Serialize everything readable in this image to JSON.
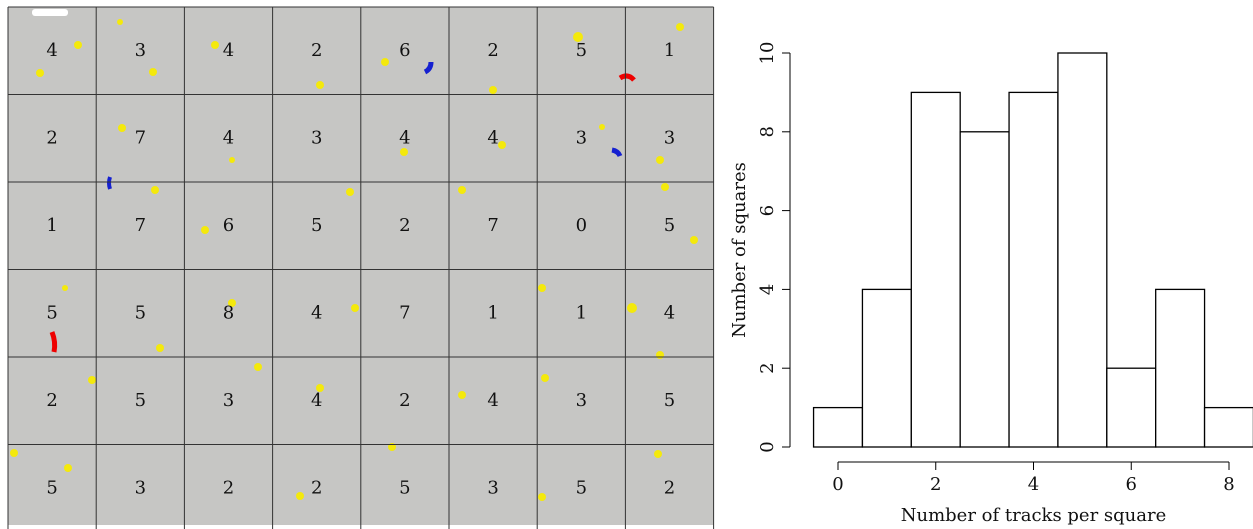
{
  "grid": {
    "rows": [
      [
        "4",
        "3",
        "4",
        "2",
        "6",
        "2",
        "5",
        "1"
      ],
      [
        "2",
        "7",
        "4",
        "3",
        "4",
        "4",
        "3",
        "3"
      ],
      [
        "1",
        "7",
        "6",
        "5",
        "2",
        "7",
        "0",
        "5"
      ],
      [
        "5",
        "5",
        "8",
        "4",
        "7",
        "1",
        "1",
        "4"
      ],
      [
        "2",
        "5",
        "3",
        "4",
        "2",
        "4",
        "3",
        "5"
      ],
      [
        "5",
        "3",
        "2",
        "2",
        "5",
        "3",
        "5",
        "2"
      ]
    ]
  },
  "chart_data": {
    "type": "histogram",
    "bins": [
      -0.5,
      0.5,
      1.5,
      2.5,
      3.5,
      4.5,
      5.5,
      6.5,
      7.5,
      8.5
    ],
    "counts": [
      1,
      4,
      9,
      8,
      9,
      10,
      2,
      4,
      1
    ],
    "x_label": "Number of tracks per square",
    "y_label": "Number of squares",
    "xlim": [
      -0.5,
      8.5
    ],
    "xticks": [
      0,
      2,
      4,
      6,
      8
    ],
    "ylim": [
      0,
      10
    ],
    "yticks": [
      0,
      2,
      4,
      6,
      8,
      10
    ],
    "color": "#ffffff"
  }
}
